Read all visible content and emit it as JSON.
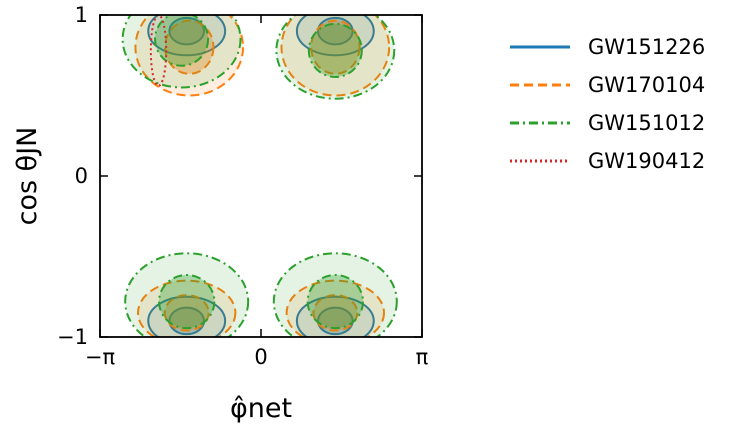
{
  "chart_data": {
    "type": "contour",
    "xlabel": "φ̂net",
    "ylabel": "cos θJN",
    "xlim": [
      "-π",
      "π"
    ],
    "ylim": [
      -1,
      1
    ],
    "x_ticks": [
      "−π",
      "0",
      "π"
    ],
    "y_ticks": [
      "−1",
      "0",
      "1"
    ],
    "legend_position": "right",
    "series": [
      {
        "name": "GW151226",
        "color": "#1f77b4",
        "line_style": "solid",
        "regions": [
          {
            "center": [
              -1.45,
              0.9
            ],
            "radius_x": 0.75,
            "radius_y": 0.15,
            "filled": true
          },
          {
            "center": [
              1.45,
              0.9
            ],
            "radius_x": 0.75,
            "radius_y": 0.15,
            "filled": true
          },
          {
            "center": [
              -1.45,
              -0.9
            ],
            "radius_x": 0.75,
            "radius_y": 0.15,
            "filled": true
          },
          {
            "center": [
              1.45,
              -0.9
            ],
            "radius_x": 0.75,
            "radius_y": 0.15,
            "filled": true
          }
        ]
      },
      {
        "name": "GW170104",
        "color": "#ff7f0e",
        "line_style": "dashed",
        "regions": [
          {
            "center": [
              -1.4,
              0.8
            ],
            "radius_x": 1.05,
            "radius_y": 0.3,
            "filled": true
          },
          {
            "center": [
              1.45,
              0.8
            ],
            "radius_x": 1.05,
            "radius_y": 0.3,
            "filled": true
          },
          {
            "center": [
              -1.45,
              -0.85
            ],
            "radius_x": 0.95,
            "radius_y": 0.2,
            "filled": true
          },
          {
            "center": [
              1.45,
              -0.85
            ],
            "radius_x": 0.95,
            "radius_y": 0.2,
            "filled": true
          }
        ]
      },
      {
        "name": "GW151012",
        "color": "#2ca02c",
        "line_style": "dashdot",
        "regions": [
          {
            "center": [
              -1.55,
              0.85
            ],
            "radius_x": 1.15,
            "radius_y": 0.3,
            "filled": true
          },
          {
            "center": [
              1.45,
              0.78
            ],
            "radius_x": 1.15,
            "radius_y": 0.3,
            "filled": true
          },
          {
            "center": [
              -1.45,
              -0.78
            ],
            "radius_x": 1.2,
            "radius_y": 0.3,
            "filled": true
          },
          {
            "center": [
              1.45,
              -0.78
            ],
            "radius_x": 1.2,
            "radius_y": 0.3,
            "filled": true
          }
        ]
      },
      {
        "name": "GW190412",
        "color": "#d62728",
        "line_style": "dotted",
        "regions": [
          {
            "center": [
              -2.0,
              0.78
            ],
            "radius_x": 0.15,
            "radius_y": 0.22,
            "filled": false
          }
        ]
      }
    ]
  }
}
